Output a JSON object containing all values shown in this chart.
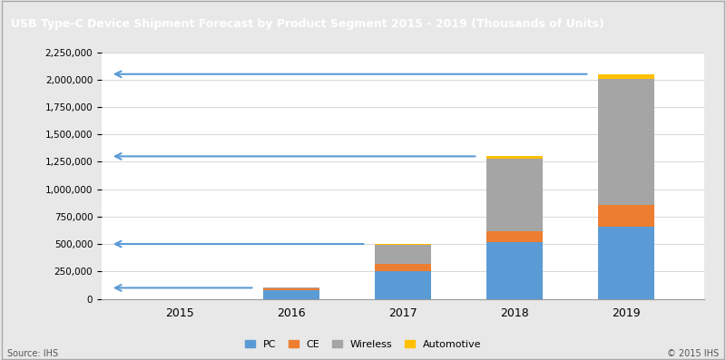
{
  "title": "USB Type-C Device Shipment Forecast by Product Segment 2015 - 2019 (Thousands of Units)",
  "years": [
    "2015",
    "2016",
    "2017",
    "2018",
    "2019"
  ],
  "segments": {
    "PC": [
      0,
      80000,
      250000,
      520000,
      660000
    ],
    "CE": [
      0,
      15000,
      70000,
      100000,
      200000
    ],
    "Wireless": [
      0,
      5000,
      170000,
      660000,
      1150000
    ],
    "Automotive": [
      0,
      2000,
      10000,
      20000,
      40000
    ]
  },
  "colors": {
    "PC": "#5B9BD5",
    "CE": "#ED7D31",
    "Wireless": "#A5A5A5",
    "Automotive": "#FFC000"
  },
  "ylim": [
    0,
    2250000
  ],
  "yticks": [
    0,
    250000,
    500000,
    750000,
    1000000,
    1250000,
    1500000,
    1750000,
    2000000,
    2250000
  ],
  "arrows": [
    {
      "y": 100000,
      "bar_idx": 1
    },
    {
      "y": 500000,
      "bar_idx": 2
    },
    {
      "y": 1300000,
      "bar_idx": 3
    },
    {
      "y": 2050000,
      "bar_idx": 4
    }
  ],
  "arrow_color": "#5B9BD5",
  "fig_bg_color": "#E8E8E8",
  "chart_bg_color": "#FFFFFF",
  "title_bg_color": "#7F7F7F",
  "title_text_color": "#FFFFFF",
  "source_text": "Source: IHS",
  "copyright_text": "© 2015 IHS",
  "bar_width": 0.5,
  "segments_order": [
    "PC",
    "CE",
    "Wireless",
    "Automotive"
  ]
}
